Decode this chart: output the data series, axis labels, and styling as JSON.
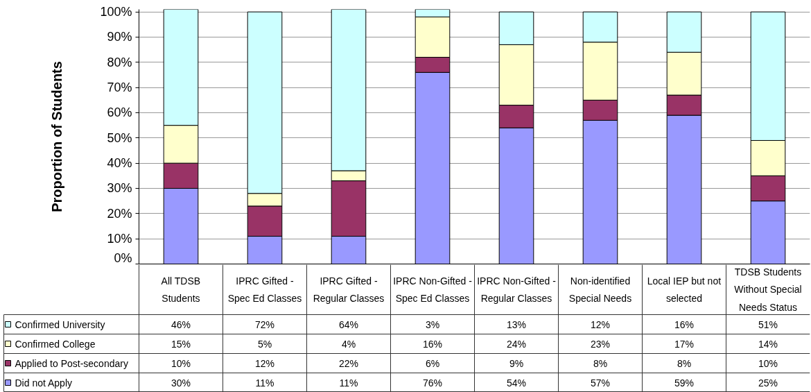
{
  "chart_data": {
    "type": "bar",
    "stacked": true,
    "ylabel": "Proportion of Students",
    "categories": [
      "All TDSB Students",
      "IPRC Gifted - Spec Ed Classes",
      "IPRC Gifted - Regular Classes",
      "IPRC Non-Gifted - Spec Ed Classes",
      "IPRC Non-Gifted - Regular Classes",
      "Non-identified Special Needs",
      "Local IEP but not selected",
      "TDSB Students Without Special Needs Status"
    ],
    "series": [
      {
        "name": "Did not Apply",
        "color": "#9999ff",
        "values": [
          30,
          11,
          11,
          76,
          54,
          57,
          59,
          25
        ],
        "value_labels": [
          "30%",
          "11%",
          "11%",
          "76%",
          "54%",
          "57%",
          "59%",
          "25%"
        ]
      },
      {
        "name": "Applied to Post-secondary",
        "color": "#993366",
        "values": [
          10,
          12,
          22,
          6,
          9,
          8,
          8,
          10
        ],
        "value_labels": [
          "10%",
          "12%",
          "22%",
          "6%",
          "9%",
          "8%",
          "8%",
          "10%"
        ]
      },
      {
        "name": "Confirmed College",
        "color": "#ffffcc",
        "values": [
          15,
          5,
          4,
          16,
          24,
          23,
          17,
          14
        ],
        "value_labels": [
          "15%",
          "5%",
          "4%",
          "16%",
          "24%",
          "23%",
          "17%",
          "14%"
        ]
      },
      {
        "name": "Confirmed University",
        "color": "#ccffff",
        "values": [
          46,
          72,
          64,
          3,
          13,
          12,
          16,
          51
        ],
        "value_labels": [
          "46%",
          "72%",
          "64%",
          "3%",
          "13%",
          "12%",
          "16%",
          "51%"
        ]
      }
    ],
    "ylim": [
      0,
      101
    ],
    "yticks": [
      {
        "value": 0,
        "label": "0%"
      },
      {
        "value": 10,
        "label": "10%"
      },
      {
        "value": 20,
        "label": "20%"
      },
      {
        "value": 30,
        "label": "30%"
      },
      {
        "value": 40,
        "label": "40%"
      },
      {
        "value": 50,
        "label": "50%"
      },
      {
        "value": 60,
        "label": "60%"
      },
      {
        "value": 70,
        "label": "70%"
      },
      {
        "value": 80,
        "label": "80%"
      },
      {
        "value": 90,
        "label": "90%"
      },
      {
        "value": 100,
        "label": "100%"
      }
    ],
    "grid": "y",
    "legend": "bottom left"
  }
}
